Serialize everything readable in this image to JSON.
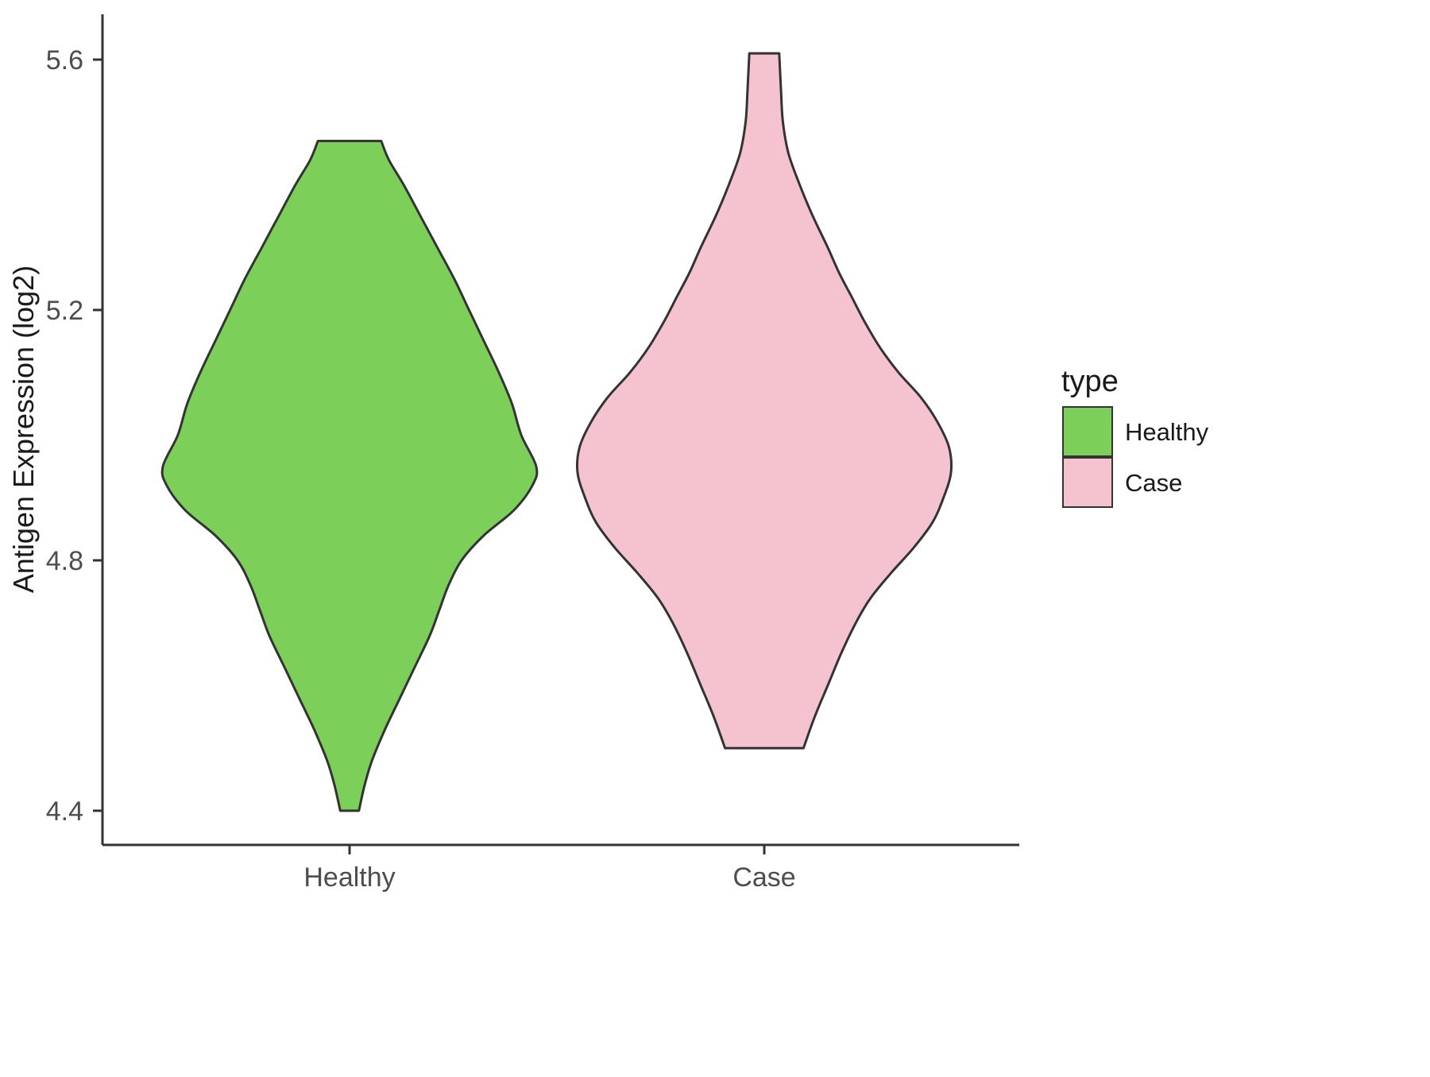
{
  "chart_data": {
    "type": "violin",
    "title": "",
    "xlabel": "",
    "ylabel": "Antigen Expression (log2)",
    "categories": [
      "Healthy",
      "Case"
    ],
    "yticks": [
      4.4,
      4.8,
      5.2,
      5.6
    ],
    "ytick_labels": [
      "4.4",
      "4.8",
      "5.2",
      "5.6"
    ],
    "ylim": [
      4.35,
      5.65
    ],
    "grid": false,
    "background": "#ffffff",
    "outline_color": "#333333",
    "axis_color": "#333333",
    "tick_text_color": "#4d4d4d",
    "title_text_color": "#1a1a1a",
    "legend": {
      "title": "type",
      "position": "right",
      "entries": [
        {
          "label": "Healthy",
          "color": "#7CD05A"
        },
        {
          "label": "Case",
          "color": "#F5C3D0"
        }
      ]
    },
    "series": [
      {
        "name": "Healthy",
        "color": "#7CD05A",
        "value_range": [
          4.4,
          5.47
        ],
        "peak_value": 4.95,
        "profile": [
          [
            4.4,
            0.05
          ],
          [
            4.44,
            0.08
          ],
          [
            4.48,
            0.12
          ],
          [
            4.53,
            0.19
          ],
          [
            4.58,
            0.27
          ],
          [
            4.63,
            0.35
          ],
          [
            4.68,
            0.43
          ],
          [
            4.72,
            0.48
          ],
          [
            4.76,
            0.53
          ],
          [
            4.8,
            0.6
          ],
          [
            4.84,
            0.72
          ],
          [
            4.88,
            0.88
          ],
          [
            4.92,
            0.98
          ],
          [
            4.95,
            1.0
          ],
          [
            5.0,
            0.92
          ],
          [
            5.05,
            0.87
          ],
          [
            5.1,
            0.8
          ],
          [
            5.15,
            0.72
          ],
          [
            5.2,
            0.64
          ],
          [
            5.25,
            0.56
          ],
          [
            5.3,
            0.47
          ],
          [
            5.35,
            0.38
          ],
          [
            5.4,
            0.29
          ],
          [
            5.44,
            0.21
          ],
          [
            5.47,
            0.17
          ]
        ]
      },
      {
        "name": "Case",
        "color": "#F5C3D0",
        "value_range": [
          4.5,
          5.61
        ],
        "peak_value": 4.94,
        "profile": [
          [
            4.5,
            0.21
          ],
          [
            4.55,
            0.27
          ],
          [
            4.6,
            0.34
          ],
          [
            4.65,
            0.41
          ],
          [
            4.7,
            0.49
          ],
          [
            4.74,
            0.57
          ],
          [
            4.78,
            0.68
          ],
          [
            4.82,
            0.8
          ],
          [
            4.86,
            0.9
          ],
          [
            4.9,
            0.96
          ],
          [
            4.94,
            1.0
          ],
          [
            4.98,
            0.99
          ],
          [
            5.02,
            0.93
          ],
          [
            5.06,
            0.84
          ],
          [
            5.1,
            0.72
          ],
          [
            5.14,
            0.62
          ],
          [
            5.18,
            0.54
          ],
          [
            5.22,
            0.47
          ],
          [
            5.26,
            0.4
          ],
          [
            5.3,
            0.34
          ],
          [
            5.35,
            0.26
          ],
          [
            5.4,
            0.19
          ],
          [
            5.45,
            0.13
          ],
          [
            5.5,
            0.1
          ],
          [
            5.55,
            0.09
          ],
          [
            5.61,
            0.08
          ]
        ]
      }
    ]
  }
}
